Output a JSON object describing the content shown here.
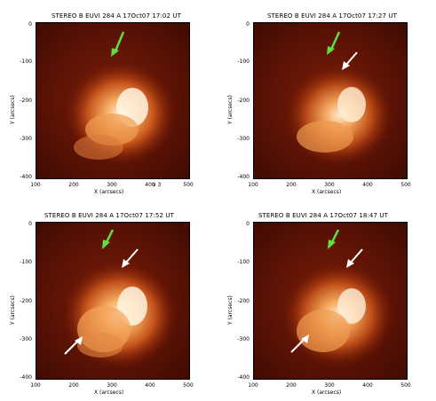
{
  "panels": [
    {
      "title": "STEREO B EUVI 284 A 17Oct07 17:02 UT",
      "xlabel": "X (arcsecs)",
      "ylabel": "Y (arcsecs)",
      "xticks": [
        "100",
        "200",
        "300",
        "400",
        "500"
      ],
      "yticks": [
        "0",
        "-100",
        "-200",
        "-300",
        "-400"
      ],
      "overlay": "x 3"
    },
    {
      "title": "STEREO B EUVI 284 A 17Oct07 17:27 UT",
      "xlabel": "X (arcsecs)",
      "ylabel": "Y (arcsecs)",
      "xticks": [
        "100",
        "200",
        "300",
        "400",
        "500"
      ],
      "yticks": [
        "0",
        "-100",
        "-200",
        "-300",
        "-400"
      ],
      "overlay": ""
    },
    {
      "title": "STEREO B EUVI 284 A 17Oct07 17:52 UT",
      "xlabel": "X (arcsecs)",
      "ylabel": "Y (arcsecs)",
      "xticks": [
        "100",
        "200",
        "300",
        "400",
        "500"
      ],
      "yticks": [
        "0",
        "-100",
        "-200",
        "-300",
        "-400"
      ],
      "overlay": ""
    },
    {
      "title": "STEREO B EUVI 284 A 17Oct07 18:47 UT",
      "xlabel": "X (arcsecs)",
      "ylabel": "Y (arcsecs)",
      "xticks": [
        "100",
        "200",
        "300",
        "400",
        "500"
      ],
      "yticks": [
        "0",
        "-100",
        "-200",
        "-300",
        "-400"
      ],
      "overlay": ""
    }
  ],
  "colors": {
    "background_dark": "#3e0b02",
    "background_mid": "#7a1c05",
    "region_bright": "#f4a35a",
    "region_core": "#fff1d8",
    "arrow_green": "#5fe03a",
    "arrow_white": "#ffffff"
  }
}
